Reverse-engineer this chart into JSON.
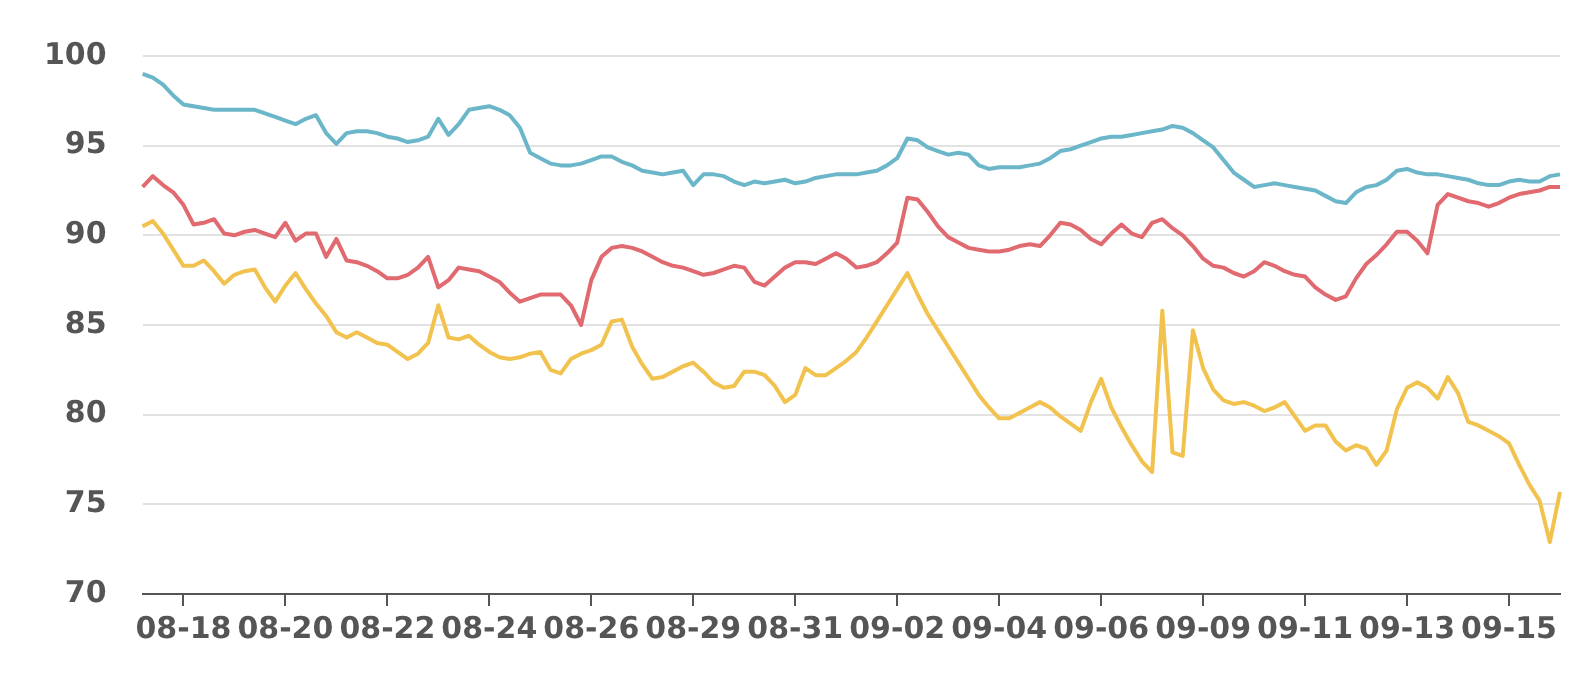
{
  "chart_data": {
    "type": "line",
    "ylim": [
      70,
      100
    ],
    "yticks": [
      70,
      75,
      80,
      85,
      90,
      95,
      100
    ],
    "categories": [
      null,
      null,
      null,
      null,
      "08-18",
      null,
      null,
      null,
      null,
      null,
      null,
      null,
      null,
      null,
      "08-20",
      null,
      null,
      null,
      null,
      null,
      null,
      null,
      null,
      null,
      "08-22",
      null,
      null,
      null,
      null,
      null,
      null,
      null,
      null,
      null,
      "08-24",
      null,
      null,
      null,
      null,
      null,
      null,
      null,
      null,
      null,
      "08-26",
      null,
      null,
      null,
      null,
      null,
      null,
      null,
      null,
      null,
      "08-29",
      null,
      null,
      null,
      null,
      null,
      null,
      null,
      null,
      null,
      "08-31",
      null,
      null,
      null,
      null,
      null,
      null,
      null,
      null,
      null,
      "09-02",
      null,
      null,
      null,
      null,
      null,
      null,
      null,
      null,
      null,
      "09-04",
      null,
      null,
      null,
      null,
      null,
      null,
      null,
      null,
      null,
      "09-06",
      null,
      null,
      null,
      null,
      null,
      null,
      null,
      null,
      null,
      "09-09",
      null,
      null,
      null,
      null,
      null,
      null,
      null,
      null,
      null,
      "09-11",
      null,
      null,
      null,
      null,
      null,
      null,
      null,
      null,
      null,
      "09-13",
      null,
      null,
      null,
      null,
      null,
      null,
      null,
      null,
      null,
      "09-15",
      null,
      null,
      null,
      null,
      null
    ],
    "grid": "y",
    "legend": false,
    "marker": "none",
    "line_style": "solid",
    "series": [
      {
        "color": "#6bb7c9",
        "values": [
          99.0,
          98.8,
          98.4,
          97.8,
          97.3,
          97.2,
          97.1,
          97.0,
          97.0,
          97.0,
          97.0,
          97.0,
          96.8,
          96.6,
          96.4,
          96.2,
          96.5,
          96.7,
          95.7,
          95.1,
          95.7,
          95.8,
          95.8,
          95.7,
          95.5,
          95.4,
          95.2,
          95.3,
          95.5,
          96.5,
          95.6,
          96.2,
          97.0,
          97.1,
          97.2,
          97.0,
          96.7,
          96.0,
          94.6,
          94.3,
          94.0,
          93.9,
          93.9,
          94.0,
          94.2,
          94.4,
          94.4,
          94.1,
          93.9,
          93.6,
          93.5,
          93.4,
          93.5,
          93.6,
          92.8,
          93.4,
          93.4,
          93.3,
          93.0,
          92.8,
          93.0,
          92.9,
          93.0,
          93.1,
          92.9,
          93.0,
          93.2,
          93.3,
          93.4,
          93.4,
          93.4,
          93.5,
          93.6,
          93.9,
          94.3,
          95.4,
          95.3,
          94.9,
          94.7,
          94.5,
          94.6,
          94.5,
          93.9,
          93.7,
          93.8,
          93.8,
          93.8,
          93.9,
          94.0,
          94.3,
          94.7,
          94.8,
          95.0,
          95.2,
          95.4,
          95.5,
          95.5,
          95.6,
          95.7,
          95.8,
          95.9,
          96.1,
          96.0,
          95.7,
          95.3,
          94.9,
          94.2,
          93.5,
          93.1,
          92.7,
          92.8,
          92.9,
          92.8,
          92.7,
          92.6,
          92.5,
          92.2,
          91.9,
          91.8,
          92.4,
          92.7,
          92.8,
          93.1,
          93.6,
          93.7,
          93.5,
          93.4,
          93.4,
          93.3,
          93.2,
          93.1,
          92.9,
          92.8,
          92.8,
          93.0,
          93.1,
          93.0,
          93.0,
          93.3,
          93.4
        ]
      },
      {
        "color": "#e06a6f",
        "values": [
          92.7,
          93.3,
          92.8,
          92.4,
          91.7,
          90.6,
          90.7,
          90.9,
          90.1,
          90.0,
          90.2,
          90.3,
          90.1,
          89.9,
          90.7,
          89.7,
          90.1,
          90.1,
          88.8,
          89.8,
          88.6,
          88.5,
          88.3,
          88.0,
          87.6,
          87.6,
          87.8,
          88.2,
          88.8,
          87.1,
          87.5,
          88.2,
          88.1,
          88.0,
          87.7,
          87.4,
          86.8,
          86.3,
          86.5,
          86.7,
          86.7,
          86.7,
          86.1,
          85.0,
          87.5,
          88.8,
          89.3,
          89.4,
          89.3,
          89.1,
          88.8,
          88.5,
          88.3,
          88.2,
          88.0,
          87.8,
          87.9,
          88.1,
          88.3,
          88.2,
          87.4,
          87.2,
          87.7,
          88.2,
          88.5,
          88.5,
          88.4,
          88.7,
          89.0,
          88.7,
          88.2,
          88.3,
          88.5,
          89.0,
          89.6,
          92.1,
          92.0,
          91.3,
          90.5,
          89.9,
          89.6,
          89.3,
          89.2,
          89.1,
          89.1,
          89.2,
          89.4,
          89.5,
          89.4,
          90.0,
          90.7,
          90.6,
          90.3,
          89.8,
          89.5,
          90.1,
          90.6,
          90.1,
          89.9,
          90.7,
          90.9,
          90.4,
          90.0,
          89.4,
          88.7,
          88.3,
          88.2,
          87.9,
          87.7,
          88.0,
          88.5,
          88.3,
          88.0,
          87.8,
          87.7,
          87.1,
          86.7,
          86.4,
          86.6,
          87.6,
          88.4,
          88.9,
          89.5,
          90.2,
          90.2,
          89.7,
          89.0,
          91.7,
          92.3,
          92.1,
          91.9,
          91.8,
          91.6,
          91.8,
          92.1,
          92.3,
          92.4,
          92.5,
          92.7,
          92.7
        ]
      },
      {
        "color": "#f2c24e",
        "values": [
          90.5,
          90.8,
          90.1,
          89.2,
          88.3,
          88.3,
          88.6,
          88.0,
          87.3,
          87.8,
          88.0,
          88.1,
          87.1,
          86.3,
          87.2,
          87.9,
          87.0,
          86.2,
          85.5,
          84.6,
          84.3,
          84.6,
          84.3,
          84.0,
          83.9,
          83.5,
          83.1,
          83.4,
          84.0,
          86.1,
          84.3,
          84.2,
          84.4,
          83.9,
          83.5,
          83.2,
          83.1,
          83.2,
          83.4,
          83.5,
          82.5,
          82.3,
          83.1,
          83.4,
          83.6,
          83.9,
          85.2,
          85.3,
          83.8,
          82.8,
          82.0,
          82.1,
          82.4,
          82.7,
          82.9,
          82.4,
          81.8,
          81.5,
          81.6,
          82.4,
          82.4,
          82.2,
          81.6,
          80.7,
          81.1,
          82.6,
          82.2,
          82.2,
          82.6,
          83.0,
          83.5,
          84.3,
          85.2,
          86.1,
          87.0,
          87.9,
          86.7,
          85.6,
          84.7,
          83.8,
          82.9,
          82.0,
          81.1,
          80.4,
          79.8,
          79.8,
          80.1,
          80.4,
          80.7,
          80.4,
          79.9,
          79.5,
          79.1,
          80.7,
          82.0,
          80.4,
          79.3,
          78.3,
          77.4,
          76.8,
          85.8,
          77.9,
          77.7,
          84.7,
          82.6,
          81.4,
          80.8,
          80.6,
          80.7,
          80.5,
          80.2,
          80.4,
          80.7,
          79.9,
          79.1,
          79.4,
          79.4,
          78.5,
          78.0,
          78.3,
          78.1,
          77.2,
          78.0,
          80.3,
          81.5,
          81.8,
          81.5,
          80.9,
          82.1,
          81.2,
          79.6,
          79.4,
          79.1,
          78.8,
          78.4,
          77.2,
          76.1,
          75.2,
          72.9,
          75.7
        ]
      }
    ]
  }
}
